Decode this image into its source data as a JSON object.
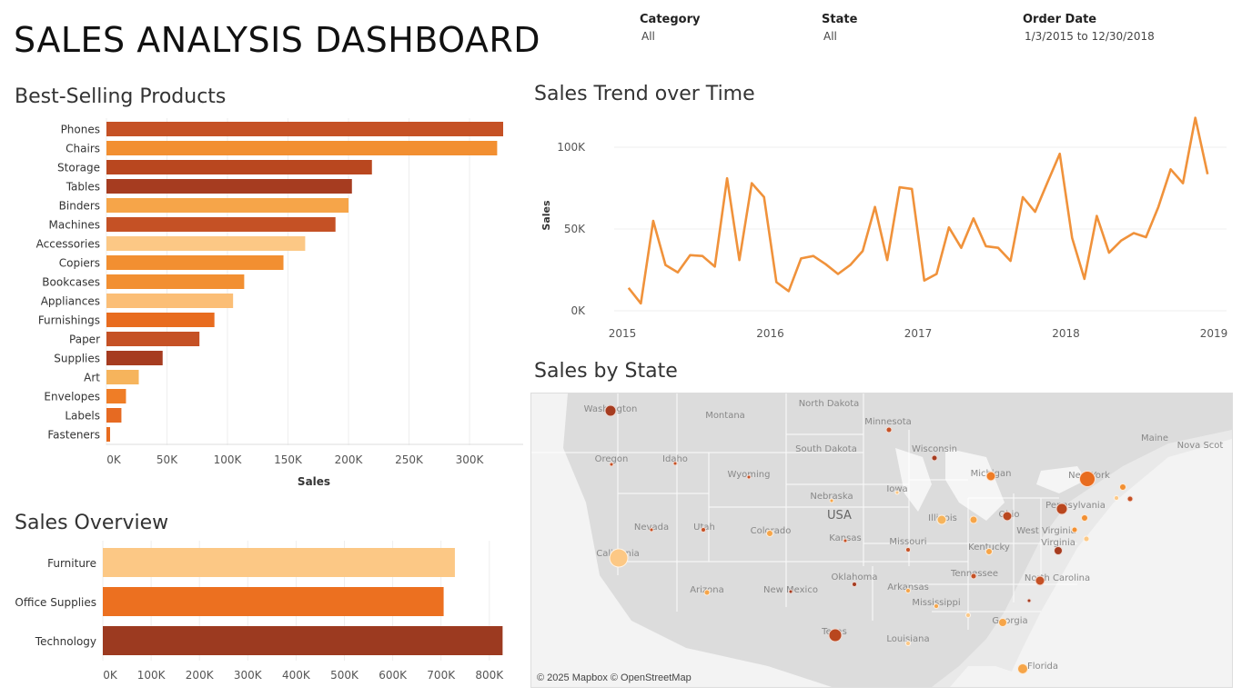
{
  "header": {
    "title": "SALES ANALYSIS DASHBOARD"
  },
  "filters": [
    {
      "label": "Category",
      "value": "All"
    },
    {
      "label": "State",
      "value": "All"
    },
    {
      "label": "Order Date",
      "value": "1/3/2015 to 12/30/2018"
    }
  ],
  "colors": {
    "dark": "#9c3a20",
    "med_dark": "#c55125",
    "orange": "#e86c1f",
    "orange2": "#f28f31",
    "light": "#f6a549",
    "lighter": "#fcc885",
    "line": "#f0923b"
  },
  "chart_data": [
    {
      "type": "bar",
      "title": "Best-Selling Products",
      "xlabel": "Sales",
      "categories": [
        "Phones",
        "Chairs",
        "Storage",
        "Tables",
        "Binders",
        "Machines",
        "Accessories",
        "Copiers",
        "Bookcases",
        "Appliances",
        "Furnishings",
        "Paper",
        "Supplies",
        "Art",
        "Envelopes",
        "Labels",
        "Fasteners"
      ],
      "values": [
        327782,
        322823,
        219343,
        202811,
        200029,
        189239,
        164187,
        146248,
        113813,
        104619,
        89212,
        76828,
        46420,
        26706,
        16128,
        12347,
        3002
      ],
      "bar_colors": [
        "#c55125",
        "#f28f31",
        "#b9471f",
        "#a63c20",
        "#f6a549",
        "#c55125",
        "#fcc885",
        "#f28f31",
        "#f28f31",
        "#fbbe76",
        "#e86c1f",
        "#c55125",
        "#a63c20",
        "#f6b45c",
        "#ef7d26",
        "#e66a22",
        "#e86c1f"
      ],
      "ticks": [
        "0K",
        "50K",
        "100K",
        "150K",
        "200K",
        "250K",
        "300K"
      ],
      "xlim": [
        0,
        340000
      ]
    },
    {
      "type": "bar",
      "title": "Sales Overview",
      "categories": [
        "Furniture",
        "Office Supplies",
        "Technology"
      ],
      "values": [
        728658,
        705422,
        827456
      ],
      "bar_colors": [
        "#fcc885",
        "#ec7020",
        "#9c3a20"
      ],
      "ticks": [
        "0K",
        "100K",
        "200K",
        "300K",
        "400K",
        "500K",
        "600K",
        "700K",
        "800K"
      ],
      "xlim": [
        0,
        850000
      ]
    },
    {
      "type": "line",
      "title": "Sales Trend over Time",
      "ylabel": "Sales",
      "x_ticks": [
        "2015",
        "2016",
        "2017",
        "2018",
        "2019"
      ],
      "y_ticks": [
        "0K",
        "50K",
        "100K"
      ],
      "ylim": [
        0,
        100000
      ],
      "x": [
        "2015-01",
        "2015-02",
        "2015-03",
        "2015-04",
        "2015-05",
        "2015-06",
        "2015-07",
        "2015-08",
        "2015-09",
        "2015-10",
        "2015-11",
        "2015-12",
        "2016-01",
        "2016-02",
        "2016-03",
        "2016-04",
        "2016-05",
        "2016-06",
        "2016-07",
        "2016-08",
        "2016-09",
        "2016-10",
        "2016-11",
        "2016-12",
        "2017-01",
        "2017-02",
        "2017-03",
        "2017-04",
        "2017-05",
        "2017-06",
        "2017-07",
        "2017-08",
        "2017-09",
        "2017-10",
        "2017-11",
        "2017-12",
        "2018-01",
        "2018-02",
        "2018-03",
        "2018-04",
        "2018-05",
        "2018-06",
        "2018-07",
        "2018-08",
        "2018-09",
        "2018-10",
        "2018-11",
        "2018-12"
      ],
      "values": [
        14000,
        4500,
        55000,
        28000,
        23500,
        34000,
        33500,
        27000,
        81000,
        31000,
        78000,
        69500,
        17500,
        12000,
        32000,
        33500,
        28500,
        22500,
        28000,
        36500,
        63500,
        31000,
        75500,
        74500,
        18500,
        22500,
        51000,
        38500,
        56500,
        39500,
        38500,
        30500,
        69500,
        60500,
        78500,
        96000,
        44500,
        19500,
        58000,
        35500,
        43000,
        47500,
        45000,
        63500,
        86500,
        78000,
        118000,
        83500
      ]
    }
  ],
  "map": {
    "title": "Sales by State",
    "copyright": "© 2025 Mapbox © OpenStreetMap",
    "country_label": "USA",
    "labels": [
      "Washington",
      "Montana",
      "North Dakota",
      "Minnesota",
      "Oregon",
      "Idaho",
      "South Dakota",
      "Wisconsin",
      "Wyoming",
      "Michigan",
      "New York",
      "Maine",
      "Nova Scot",
      "Nebraska",
      "Iowa",
      "Pennsylvania",
      "Nevada",
      "Utah",
      "Colorado",
      "Illinois",
      "Ohio",
      "Kansas",
      "Missouri",
      "West Virginia",
      "Kentucky",
      "California",
      "Virginia",
      "Oklahoma",
      "Arkansas",
      "Tennessee",
      "North Carolina",
      "Arizona",
      "New Mexico",
      "Mississippi",
      "Texas",
      "Georgia",
      "Louisiana",
      "Florida"
    ],
    "bubbles": [
      {
        "state": "Washington",
        "color": "#a63c20"
      },
      {
        "state": "California",
        "color": "#fcc885"
      },
      {
        "state": "New York",
        "color": "#e86c1f"
      },
      {
        "state": "Texas",
        "color": "#b9471f"
      },
      {
        "state": "Pennsylvania",
        "color": "#b9471f"
      },
      {
        "state": "Florida",
        "color": "#f6a549"
      },
      {
        "state": "Illinois",
        "color": "#f6b45c"
      },
      {
        "state": "Ohio",
        "color": "#b9471f"
      },
      {
        "state": "Michigan",
        "color": "#ef7d26"
      },
      {
        "state": "Virginia",
        "color": "#a63c20"
      },
      {
        "state": "North Carolina",
        "color": "#c55125"
      },
      {
        "state": "Georgia",
        "color": "#f6a549"
      },
      {
        "state": "Indiana",
        "color": "#f6a549"
      },
      {
        "state": "Kentucky",
        "color": "#f6a549"
      },
      {
        "state": "New Jersey",
        "color": "#f28f31"
      },
      {
        "state": "Colorado",
        "color": "#f6a549"
      },
      {
        "state": "Tennessee",
        "color": "#c55125"
      },
      {
        "state": "Minnesota",
        "color": "#c55125"
      },
      {
        "state": "Wisconsin",
        "color": "#a63c20"
      },
      {
        "state": "Delaware",
        "color": "#fcc885"
      },
      {
        "state": "Massachusetts",
        "color": "#f28f31"
      },
      {
        "state": "Rhode Island",
        "color": "#c55125"
      },
      {
        "state": "Connecticut",
        "color": "#fcc885"
      },
      {
        "state": "Oklahoma",
        "color": "#a63c20"
      },
      {
        "state": "Missouri",
        "color": "#c55125"
      },
      {
        "state": "Alabama",
        "color": "#fcc885"
      },
      {
        "state": "Arizona",
        "color": "#f6a549"
      },
      {
        "state": "Arkansas",
        "color": "#f6a549"
      },
      {
        "state": "Louisiana",
        "color": "#fcc885"
      },
      {
        "state": "Mississippi",
        "color": "#f6a549"
      },
      {
        "state": "Utah",
        "color": "#c55125"
      },
      {
        "state": "South Carolina",
        "color": "#a63c20"
      },
      {
        "state": "Maryland",
        "color": "#f28f31"
      },
      {
        "state": "Oregon",
        "color": "#c55125"
      },
      {
        "state": "Kansas",
        "color": "#c55125"
      },
      {
        "state": "Nevada",
        "color": "#c55125"
      },
      {
        "state": "New Mexico",
        "color": "#a63c20"
      },
      {
        "state": "Idaho",
        "color": "#c55125"
      },
      {
        "state": "Nebraska",
        "color": "#f6a549"
      },
      {
        "state": "Iowa",
        "color": "#fcc885"
      },
      {
        "state": "Wyoming",
        "color": "#c55125"
      }
    ]
  }
}
